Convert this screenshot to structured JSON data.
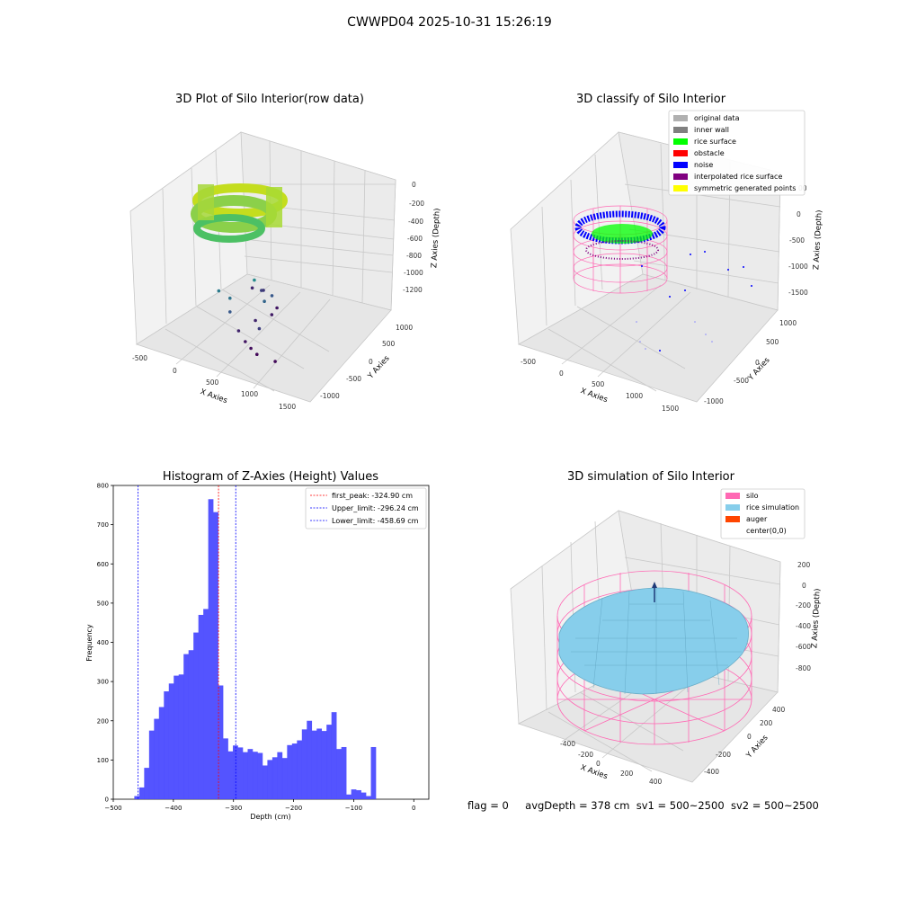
{
  "figure": {
    "suptitle": "CWWPD04 2025-10-31 15:26:19",
    "footer": {
      "flag": "flag = 0",
      "avg_depth": "avgDepth = 378 cm",
      "sv1": "sv1 = 500~2500",
      "sv2": "sv2 = 500~2500"
    }
  },
  "chart_data": [
    {
      "type": "scatter",
      "projection": "3d",
      "title": "3D Plot of Silo Interior(row data)",
      "xlabel": "X Axies",
      "ylabel": "Y Axies",
      "zlabel": "Z Axies (Depth)",
      "x_ticks": [
        "-500",
        "0",
        "500",
        "1000",
        "1500"
      ],
      "y_ticks": [
        "-1000",
        "-500",
        "0",
        "500",
        "1000"
      ],
      "z_ticks": [
        "0",
        "-200",
        "-400",
        "-600",
        "-800",
        "-1000",
        "-1200"
      ],
      "colormap": "viridis",
      "outlier_points": [
        {
          "x": 1130,
          "y": 760,
          "z": -1170
        },
        {
          "x": 1170,
          "y": 820,
          "z": -1210
        },
        {
          "x": 1220,
          "y": 560,
          "z": -1050
        },
        {
          "x": 1040,
          "y": 890,
          "z": -1280
        },
        {
          "x": 1180,
          "y": 400,
          "z": -1330
        },
        {
          "x": 1300,
          "y": 620,
          "z": -1350
        },
        {
          "x": 900,
          "y": 120,
          "z": -1290
        },
        {
          "x": 700,
          "y": -480,
          "z": -1390
        },
        {
          "x": 650,
          "y": -380,
          "z": -1360
        },
        {
          "x": 760,
          "y": -560,
          "z": -1420
        },
        {
          "x": 980,
          "y": -640,
          "z": -1410
        },
        {
          "x": 600,
          "y": -220,
          "z": -1300
        },
        {
          "x": 880,
          "y": -180,
          "z": -1180
        },
        {
          "x": 520,
          "y": -80,
          "z": -1050
        },
        {
          "x": 430,
          "y": 160,
          "z": -860
        },
        {
          "x": 560,
          "y": 90,
          "z": -900
        },
        {
          "x": 980,
          "y": 520,
          "z": -760
        },
        {
          "x": 1060,
          "y": 300,
          "z": -980
        }
      ]
    },
    {
      "type": "scatter",
      "projection": "3d",
      "title": "3D classify of Silo Interior",
      "xlabel": "X Axies",
      "ylabel": "Y Axies",
      "zlabel": "Z Axies (Depth)",
      "x_ticks": [
        "-500",
        "0",
        "500",
        "1000",
        "1500"
      ],
      "y_ticks": [
        "-1000",
        "-500",
        "0",
        "500",
        "1000"
      ],
      "z_ticks": [
        "0",
        "-500",
        "-1000",
        "-1500"
      ],
      "z_ticks_partial": [
        "00"
      ],
      "legend_position": "top-right",
      "legend": [
        {
          "label": "original data",
          "color": "#b0b0b0"
        },
        {
          "label": "inner wall",
          "color": "#808080"
        },
        {
          "label": "rice surface",
          "color": "#00ff00"
        },
        {
          "label": "obstacle",
          "color": "#ff0000"
        },
        {
          "label": "noise",
          "color": "#0000ff"
        },
        {
          "label": "interpolated rice surface",
          "color": "#800080"
        },
        {
          "label": "symmetric generated points",
          "color": "#ffff00"
        }
      ],
      "wireframe_color": "#ff69b4"
    },
    {
      "type": "bar",
      "subtype": "histogram",
      "title": "Histogram of Z-Axies (Height) Values",
      "xlabel": "Depth (cm)",
      "ylabel": "Frequency",
      "xlim": [
        -500,
        25
      ],
      "ylim": [
        0,
        800
      ],
      "x_ticks": [
        -500,
        -400,
        -300,
        -200,
        -100,
        0
      ],
      "y_ticks": [
        0,
        100,
        200,
        300,
        400,
        500,
        600,
        700,
        800
      ],
      "bar_color": "#4b4bff",
      "bins_start": -465,
      "bin_width": 8.2,
      "values": [
        8,
        30,
        80,
        175,
        205,
        235,
        275,
        295,
        315,
        318,
        370,
        380,
        425,
        470,
        485,
        765,
        732,
        290,
        155,
        122,
        137,
        132,
        120,
        128,
        121,
        118,
        86,
        100,
        107,
        120,
        105,
        138,
        142,
        150,
        178,
        200,
        175,
        180,
        174,
        190,
        222,
        128,
        133,
        12,
        25,
        23,
        17,
        8,
        133
      ],
      "vlines": [
        {
          "label": "first_peak: -324.90 cm",
          "x": -324.9,
          "color": "#ff0000"
        },
        {
          "label": "Upper_limit: -296.24 cm",
          "x": -296.24,
          "color": "#0000ff"
        },
        {
          "label": "Lower_limit: -458.69 cm",
          "x": -458.69,
          "color": "#0000ff"
        }
      ],
      "legend_position": "top-right"
    },
    {
      "type": "surface",
      "projection": "3d",
      "title": "3D simulation of Silo Interior",
      "xlabel": "X Axies",
      "ylabel": "Y Axies",
      "zlabel": "Z Axies (Depth)",
      "x_ticks": [
        "-400",
        "-200",
        "0",
        "200",
        "400"
      ],
      "y_ticks": [
        "-400",
        "-200",
        "0",
        "200",
        "400"
      ],
      "z_ticks": [
        "200",
        "0",
        "-200",
        "-400",
        "-600",
        "-800"
      ],
      "legend_position": "top-right",
      "legend": [
        {
          "label": "silo",
          "color": "#ff69b4"
        },
        {
          "label": "rice simulation",
          "color": "#87ceeb"
        },
        {
          "label": "auger",
          "color": "#ff4500"
        },
        {
          "label": "center(0,0)",
          "color": ""
        }
      ]
    }
  ]
}
